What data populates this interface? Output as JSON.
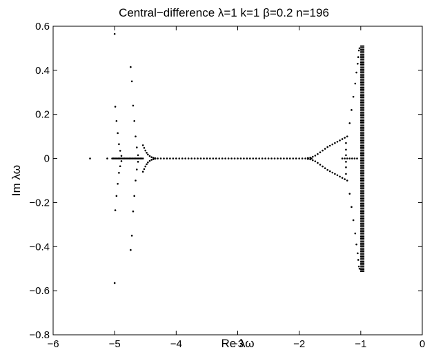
{
  "chart_data": {
    "type": "scatter",
    "title": "Central−difference     λ=1   k=1    β=0.2   n=196",
    "xlabel": "Re λω",
    "ylabel": "Im λω",
    "xlim": [
      -6,
      0
    ],
    "ylim": [
      -0.8,
      0.6
    ],
    "xticks": [
      -6,
      -5,
      -4,
      -3,
      -2,
      -1,
      0
    ],
    "xtick_labels": [
      "−6",
      "−5",
      "−4",
      "−3",
      "−2",
      "−1",
      "0"
    ],
    "yticks": [
      -0.8,
      -0.6,
      -0.4,
      -0.2,
      0,
      0.2,
      0.4,
      0.6
    ],
    "ytick_labels": [
      "−0.8",
      "−0.6",
      "−0.4",
      "−0.2",
      "0",
      "0.2",
      "0.4",
      "0.6"
    ],
    "grid": false,
    "marker_color": "#000000",
    "points_x": [
      -5.4,
      -5.12,
      -5.04,
      -5.02,
      -5.0,
      -4.98,
      -4.96,
      -4.94,
      -4.92,
      -4.9,
      -4.88,
      -4.86,
      -4.84,
      -4.82,
      -4.8,
      -4.78,
      -4.76,
      -4.74,
      -4.72,
      -4.7,
      -4.68,
      -4.66,
      -4.64,
      -4.62,
      -4.6,
      -4.58,
      -4.56,
      -4.54,
      -5.0,
      -5.0,
      -4.99,
      -4.99,
      -4.97,
      -4.97,
      -4.95,
      -4.95,
      -4.93,
      -4.93,
      -4.91,
      -4.91,
      -4.89,
      -4.89,
      -4.74,
      -4.74,
      -4.72,
      -4.72,
      -4.7,
      -4.7,
      -4.68,
      -4.68,
      -4.66,
      -4.66,
      -4.64,
      -4.64,
      -4.62,
      -4.62,
      -4.54,
      -4.54,
      -4.52,
      -4.52,
      -4.5,
      -4.5,
      -4.48,
      -4.48,
      -4.46,
      -4.46,
      -4.43,
      -4.43,
      -4.4,
      -4.4,
      -4.37,
      -4.37,
      -4.34,
      -4.34,
      -4.3,
      -4.25,
      -4.2,
      -4.15,
      -4.1,
      -4.05,
      -4.0,
      -3.95,
      -3.9,
      -3.85,
      -3.8,
      -3.75,
      -3.7,
      -3.65,
      -3.6,
      -3.55,
      -3.5,
      -3.45,
      -3.4,
      -3.35,
      -3.3,
      -3.25,
      -3.2,
      -3.15,
      -3.1,
      -3.05,
      -3.0,
      -2.95,
      -2.9,
      -2.85,
      -2.8,
      -2.75,
      -2.7,
      -2.65,
      -2.6,
      -2.55,
      -2.5,
      -2.45,
      -2.4,
      -2.35,
      -2.3,
      -2.25,
      -2.2,
      -2.15,
      -2.1,
      -2.05,
      -2.0,
      -1.95,
      -1.9,
      -1.85,
      -1.8,
      -1.86,
      -1.86,
      -1.82,
      -1.82,
      -1.78,
      -1.78,
      -1.74,
      -1.74,
      -1.7,
      -1.7,
      -1.66,
      -1.66,
      -1.62,
      -1.62,
      -1.58,
      -1.58,
      -1.54,
      -1.54,
      -1.5,
      -1.5,
      -1.46,
      -1.46,
      -1.42,
      -1.42,
      -1.38,
      -1.38,
      -1.34,
      -1.34,
      -1.3,
      -1.3,
      -1.26,
      -1.26,
      -1.22,
      -1.22,
      -1.24,
      -1.24,
      -1.24,
      -1.24,
      -1.24,
      -1.24,
      -1.18,
      -1.18,
      -1.15,
      -1.15,
      -1.12,
      -1.12,
      -1.09,
      -1.09,
      -1.07,
      -1.07,
      -1.05,
      -1.05,
      -1.04,
      -1.04,
      -1.03,
      -1.03,
      -1.02,
      -1.02,
      -1.3,
      -1.26,
      -1.22,
      -1.18,
      -1.14,
      -1.1,
      -1.06
    ],
    "points_y": [
      0.0,
      0.0,
      0.0,
      0.0,
      0.0,
      0.0,
      0.0,
      0.0,
      0.0,
      0.0,
      0.0,
      0.0,
      0.0,
      0.0,
      0.0,
      0.0,
      0.0,
      0.0,
      0.0,
      0.0,
      0.0,
      0.0,
      0.0,
      0.0,
      0.0,
      0.0,
      0.0,
      0.0,
      0.565,
      -0.565,
      0.235,
      -0.235,
      0.17,
      -0.17,
      0.115,
      -0.115,
      0.065,
      -0.065,
      0.035,
      -0.035,
      0.012,
      -0.012,
      0.415,
      -0.415,
      0.35,
      -0.35,
      0.24,
      -0.24,
      0.17,
      -0.17,
      0.1,
      -0.1,
      0.05,
      -0.05,
      0.015,
      -0.015,
      0.06,
      -0.06,
      0.048,
      -0.048,
      0.036,
      -0.036,
      0.026,
      -0.026,
      0.018,
      -0.018,
      0.011,
      -0.011,
      0.006,
      -0.006,
      0.003,
      -0.003,
      0.001,
      -0.001,
      0.0,
      0.0,
      0.0,
      0.0,
      0.0,
      0.0,
      0.0,
      0.0,
      0.0,
      0.0,
      0.0,
      0.0,
      0.0,
      0.0,
      0.0,
      0.0,
      0.0,
      0.0,
      0.0,
      0.0,
      0.0,
      0.0,
      0.0,
      0.0,
      0.0,
      0.0,
      0.0,
      0.0,
      0.0,
      0.0,
      0.0,
      0.0,
      0.0,
      0.0,
      0.0,
      0.0,
      0.0,
      0.0,
      0.0,
      0.0,
      0.0,
      0.0,
      0.0,
      0.0,
      0.0,
      0.0,
      0.0,
      0.0,
      0.0,
      0.0,
      0.0,
      0.002,
      -0.002,
      0.004,
      -0.004,
      0.008,
      -0.008,
      0.013,
      -0.013,
      0.02,
      -0.02,
      0.028,
      -0.028,
      0.036,
      -0.036,
      0.044,
      -0.044,
      0.052,
      -0.052,
      0.058,
      -0.058,
      0.064,
      -0.064,
      0.07,
      -0.07,
      0.076,
      -0.076,
      0.082,
      -0.082,
      0.088,
      -0.088,
      0.094,
      -0.094,
      0.1,
      -0.1,
      0.07,
      -0.07,
      0.04,
      -0.04,
      0.015,
      -0.015,
      0.16,
      -0.16,
      0.22,
      -0.22,
      0.28,
      -0.28,
      0.34,
      -0.34,
      0.39,
      -0.39,
      0.43,
      -0.43,
      0.46,
      -0.46,
      0.49,
      -0.49,
      0.5,
      -0.5,
      0.0,
      0.0,
      0.0,
      0.0,
      0.0,
      0.0,
      0.0
    ],
    "vertical_band": {
      "description_x_values": [
        -1.0,
        -0.99,
        -0.98,
        -0.97,
        -0.96,
        -0.95
      ],
      "y_extent": [
        -0.515,
        0.515
      ]
    }
  }
}
